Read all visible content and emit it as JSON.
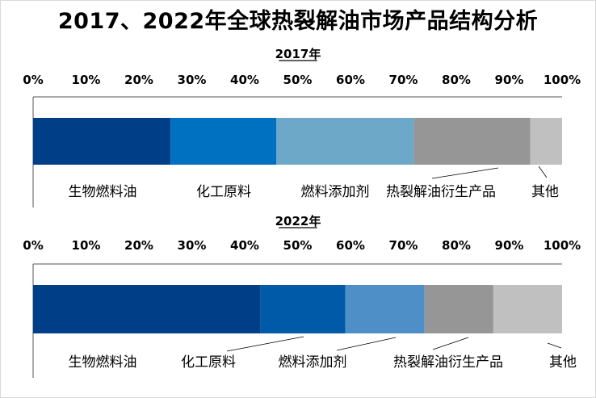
{
  "title": "2017、2022年全球热裂解油市场产品结构分析",
  "chart_data": [
    {
      "type": "bar",
      "orientation": "horizontal",
      "stacked": true,
      "title": "2017年",
      "categories": [
        "生物燃料油",
        "化工原料",
        "燃料添加剂",
        "热裂解油衍生产品",
        "其他"
      ],
      "values": [
        26,
        20,
        26,
        22,
        6
      ],
      "colors": [
        "#003f88",
        "#0070c0",
        "#6ea8c8",
        "#969696",
        "#c0c0c0"
      ],
      "ticks": [
        "0%",
        "10%",
        "20%",
        "30%",
        "40%",
        "50%",
        "60%",
        "70%",
        "80%",
        "90%",
        "100%"
      ],
      "xlim": [
        0,
        100
      ],
      "grid": false
    },
    {
      "type": "bar",
      "orientation": "horizontal",
      "stacked": true,
      "title": "2022年",
      "categories": [
        "生物燃料油",
        "化工原料",
        "燃料添加剂",
        "热裂解油衍生产品",
        "其他"
      ],
      "values": [
        43,
        16,
        15,
        13,
        13
      ],
      "colors": [
        "#003f88",
        "#005aa8",
        "#4f8fc8",
        "#969696",
        "#c0c0c0"
      ],
      "ticks": [
        "0%",
        "10%",
        "20%",
        "30%",
        "40%",
        "50%",
        "60%",
        "70%",
        "80%",
        "90%",
        "100%"
      ],
      "xlim": [
        0,
        100
      ],
      "grid": false
    }
  ]
}
